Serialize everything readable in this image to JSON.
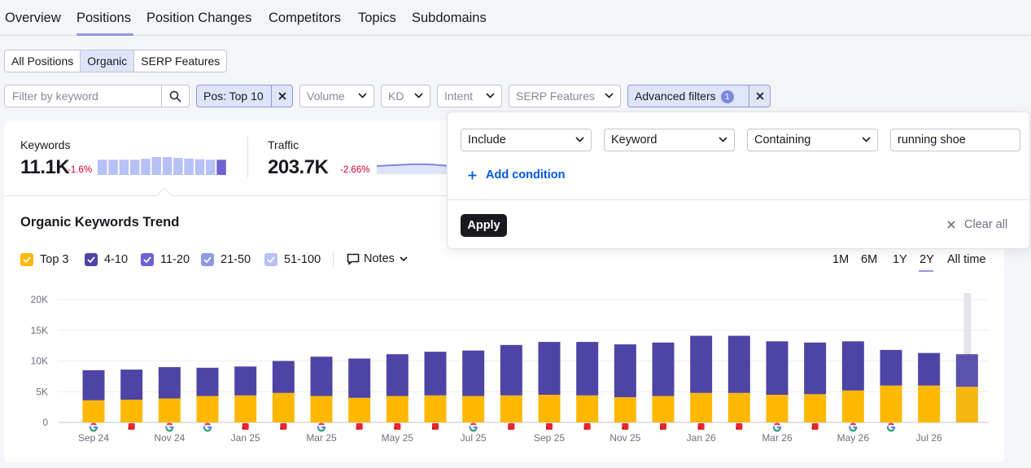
{
  "nav": {
    "tabs": [
      {
        "label": "Overview"
      },
      {
        "label": "Positions"
      },
      {
        "label": "Position Changes"
      },
      {
        "label": "Competitors"
      },
      {
        "label": "Topics"
      },
      {
        "label": "Subdomains"
      }
    ],
    "active": "Positions"
  },
  "segments": {
    "items": [
      "All Positions",
      "Organic",
      "SERP Features"
    ],
    "active": "Organic"
  },
  "filters": {
    "search_placeholder": "Filter by keyword",
    "pos_chip": "Pos: Top 10",
    "volume": "Volume",
    "kd": "KD",
    "intent": "Intent",
    "serp": "SERP Features",
    "advanced": "Advanced filters",
    "advanced_count": "1"
  },
  "metrics": {
    "keywords": {
      "label": "Keywords",
      "value": "11.1K",
      "delta": "-1.6%"
    },
    "traffic": {
      "label": "Traffic",
      "value": "203.7K",
      "delta": "-2.66%"
    },
    "keywords_sparkline": [
      0.85,
      0.85,
      0.85,
      0.85,
      0.9,
      1.0,
      1.0,
      0.95,
      0.92,
      0.88,
      0.85,
      0.85
    ]
  },
  "advanced_popup": {
    "include": "Include",
    "field": "Keyword",
    "operator": "Containing",
    "value": "running shoe",
    "add_condition": "Add condition",
    "apply": "Apply",
    "clear_all": "Clear all"
  },
  "trend": {
    "title": "Organic Keywords Trend",
    "notes": "Notes",
    "legend": [
      {
        "label": "Top 3",
        "color": "#ffb800"
      },
      {
        "label": "4-10",
        "color": "#4e44a6"
      },
      {
        "label": "11-20",
        "color": "#6b63d1"
      },
      {
        "label": "21-50",
        "color": "#8d98e6"
      },
      {
        "label": "51-100",
        "color": "#b6c1f7"
      }
    ],
    "periods": [
      "1M",
      "6M",
      "1Y",
      "2Y",
      "All time"
    ],
    "active_period": "2Y"
  },
  "colors": {
    "top3": "#ffb800",
    "four_ten": "#4e44a6",
    "accent": "#8d98e6",
    "negative": "#d1002f",
    "link": "#0058e6"
  },
  "chart_data": {
    "type": "bar",
    "stacked": true,
    "yticks": [
      "20K",
      "15K",
      "10K",
      "5K",
      "0"
    ],
    "ylim": [
      0,
      20000
    ],
    "x_labels": [
      "Sep 24",
      "Nov 24",
      "Jan 25",
      "Mar 25",
      "May 25",
      "Jul 25",
      "Sep 25",
      "Nov 25",
      "Jan 26",
      "Mar 26",
      "May 26",
      "Jul 26"
    ],
    "series": [
      {
        "name": "Top 3",
        "values": [
          3600,
          3700,
          3900,
          4300,
          4400,
          4800,
          4300,
          4000,
          4300,
          4400,
          4300,
          4400,
          4500,
          4400,
          4100,
          4300,
          4800,
          4800,
          4500,
          4600,
          5200,
          6000,
          6000,
          5800
        ]
      },
      {
        "name": "4-10",
        "values": [
          4900,
          4900,
          5100,
          4600,
          4700,
          5200,
          6400,
          6400,
          6800,
          7100,
          7400,
          8200,
          8600,
          8700,
          8600,
          8700,
          9300,
          9300,
          8700,
          8400,
          8000,
          5800,
          5300,
          5300
        ]
      }
    ],
    "markers": [
      "google",
      "flag",
      "google",
      "google",
      "flag",
      "flag",
      "google",
      "flag",
      "flag",
      "flag",
      "google",
      "flag",
      "flag",
      "flag",
      "flag",
      "flag",
      "flag",
      "flag",
      "google",
      "flag",
      "google",
      "google",
      "",
      ""
    ]
  }
}
